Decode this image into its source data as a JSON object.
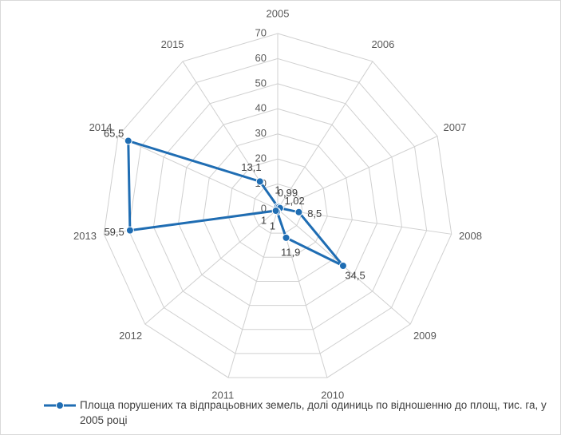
{
  "chart_data": {
    "type": "radar",
    "categories": [
      "2005",
      "2006",
      "2007",
      "2008",
      "2009",
      "2010",
      "2011",
      "2012",
      "2013",
      "2014",
      "2015"
    ],
    "series": [
      {
        "name": "Площа порушених та відпрацьовних земель, долі одиниць по відношенню до площ, тис. га, у 2005 році",
        "color": "#1f6db3",
        "values": [
          1,
          0.99,
          1.02,
          8.5,
          34.5,
          11.9,
          1,
          1,
          59.5,
          65.5,
          13.1
        ],
        "value_labels": [
          "1",
          "0,99",
          "1,02",
          "8,5",
          "34,5",
          "11,9",
          "1",
          "1",
          "59,5",
          "65,5",
          "13,1"
        ]
      }
    ],
    "rlim": [
      0,
      70
    ],
    "rticks": [
      0,
      10,
      20,
      30,
      40,
      50,
      60,
      70
    ],
    "grid": true,
    "legend": "bottom"
  }
}
